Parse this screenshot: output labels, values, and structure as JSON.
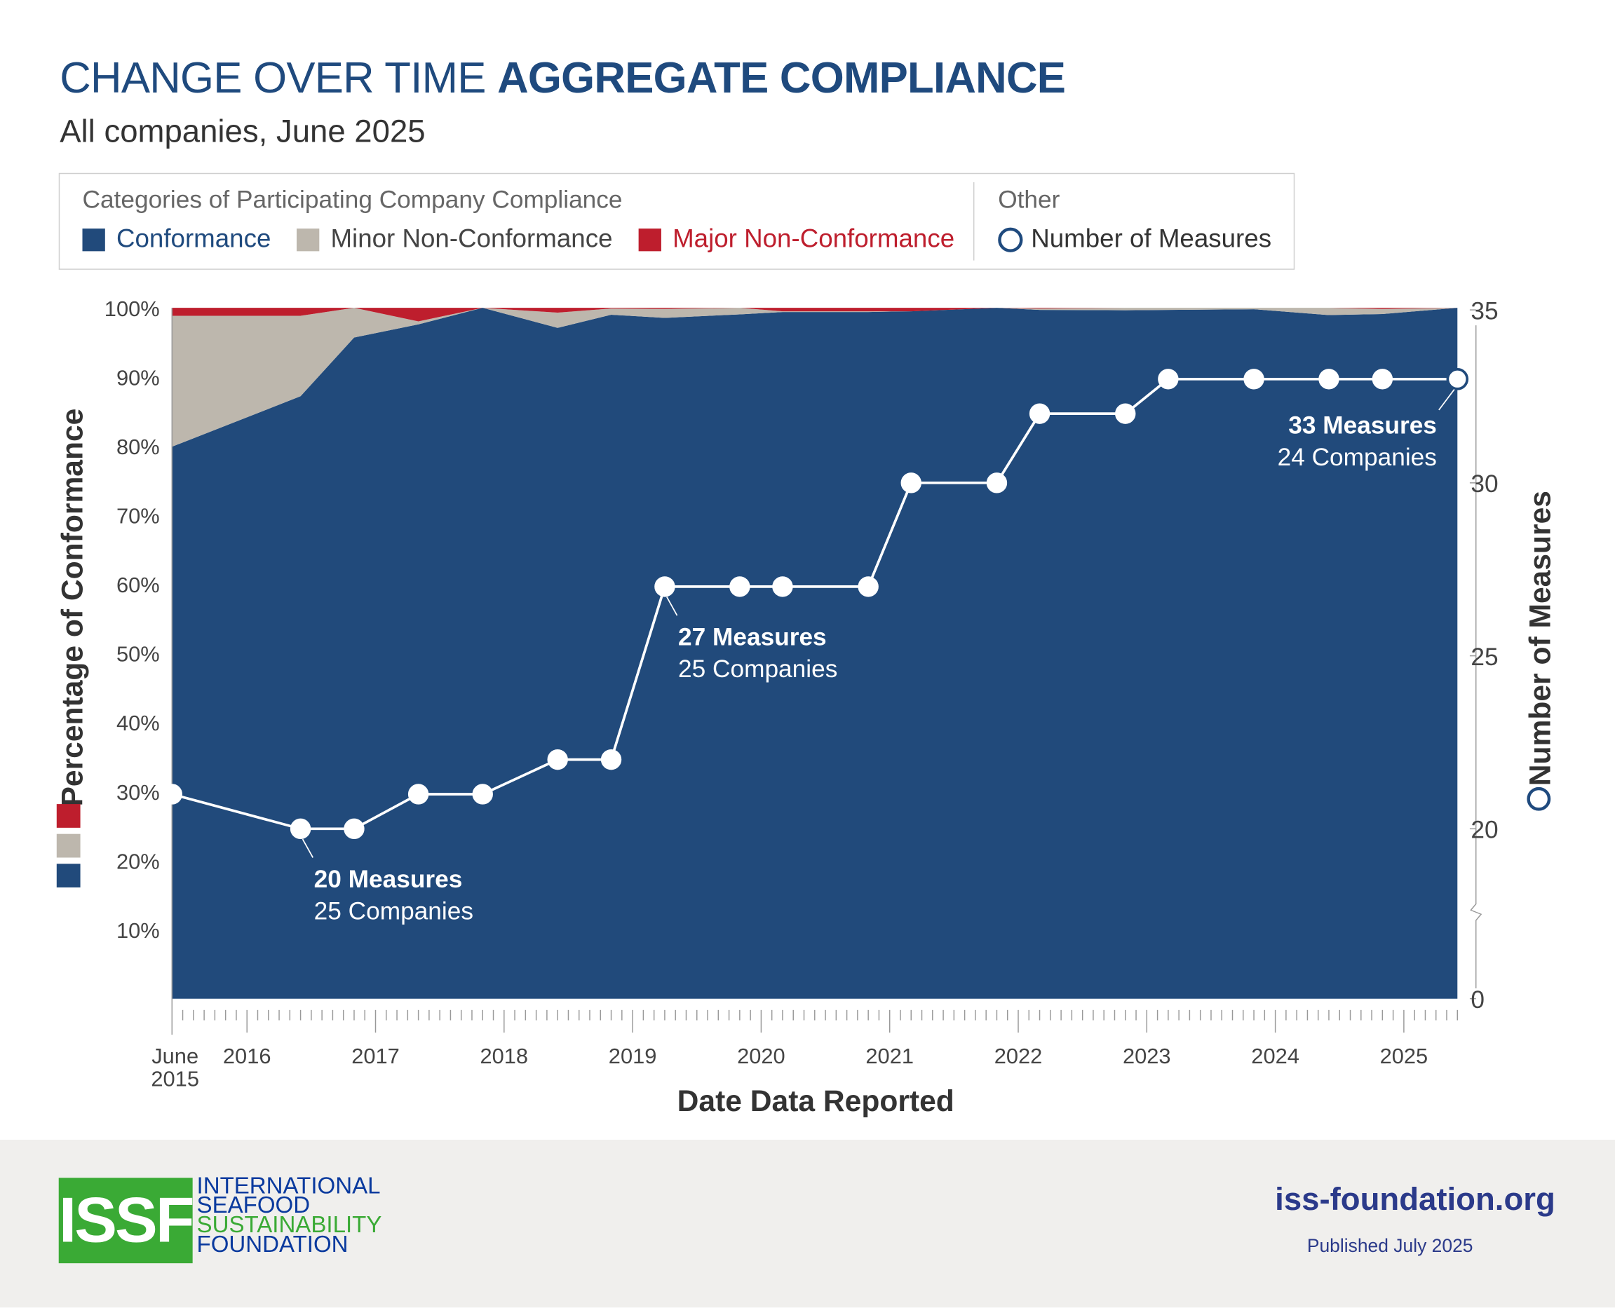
{
  "header": {
    "title_regular": "CHANGE OVER TIME",
    "title_bold": "AGGREGATE COMPLIANCE",
    "subtitle": "All companies, June 2025"
  },
  "legend": {
    "group1_title": "Categories of Participating Company Compliance",
    "group2_title": "Other",
    "items": [
      {
        "label": "Conformance",
        "color": "#214a7b"
      },
      {
        "label": "Minor Non-Conformance",
        "color": "#bdb7ad"
      },
      {
        "label": "Major Non-Conformance",
        "color": "#be1e2d"
      },
      {
        "label": "Number of Measures",
        "icon": "circle-outline-icon"
      }
    ]
  },
  "footer": {
    "logo_text": "ISSF",
    "logo_lines": [
      "INTERNATIONAL",
      "SEAFOOD",
      "SUSTAINABILITY",
      "FOUNDATION"
    ],
    "website": "iss-foundation.org",
    "published": "Published July 2025",
    "green": "#3aaa35",
    "blue": "#0a3a9e"
  },
  "chart_data": {
    "type": "area",
    "secondary_type": "line",
    "xlabel": "Date Data Reported",
    "ylabel": "Percentage of Conformance",
    "y2label": "Number of Measures",
    "ylim": [
      0,
      100
    ],
    "y2lim": [
      0,
      35
    ],
    "y2_axis_break": true,
    "grid": false,
    "legend_placement": "top",
    "x_tick_labels": [
      {
        "date": "2015-06",
        "label": "June 2015"
      },
      {
        "date": "2016-01",
        "label": "2016"
      },
      {
        "date": "2017-01",
        "label": "2017"
      },
      {
        "date": "2018-01",
        "label": "2018"
      },
      {
        "date": "2019-01",
        "label": "2019"
      },
      {
        "date": "2020-01",
        "label": "2020"
      },
      {
        "date": "2021-01",
        "label": "2021"
      },
      {
        "date": "2022-01",
        "label": "2022"
      },
      {
        "date": "2023-01",
        "label": "2023"
      },
      {
        "date": "2024-01",
        "label": "2024"
      },
      {
        "date": "2025-01",
        "label": "2025"
      }
    ],
    "y_tick_labels": [
      "10%",
      "20%",
      "30%",
      "40%",
      "50%",
      "60%",
      "70%",
      "80%",
      "90%",
      "100%"
    ],
    "y_ticks": [
      10,
      20,
      30,
      40,
      50,
      60,
      70,
      80,
      90,
      100
    ],
    "y2_ticks": [
      0,
      20,
      25,
      30,
      35
    ],
    "x": [
      "2015-06",
      "2016-06",
      "2016-11",
      "2017-05",
      "2017-11",
      "2018-06",
      "2018-11",
      "2019-04",
      "2019-11",
      "2020-03",
      "2020-11",
      "2021-03",
      "2021-11",
      "2022-03",
      "2022-11",
      "2023-03",
      "2023-11",
      "2024-06",
      "2024-11",
      "2025-06"
    ],
    "series": [
      {
        "name": "Conformance",
        "color": "#214a7b",
        "values": [
          79.9,
          87.2,
          95.7,
          97.6,
          100,
          97.1,
          99.0,
          98.55,
          99.05,
          99.4,
          99.4,
          99.5,
          100,
          99.7,
          99.65,
          99.7,
          99.8,
          98.95,
          99.1,
          100
        ]
      },
      {
        "name": "Minor Non-Conformance",
        "color": "#bdb7ad",
        "values": [
          18.95,
          11.65,
          4.3,
          0.44,
          0,
          2.2,
          0.9,
          1.3,
          0.95,
          0.1,
          0.1,
          0,
          0,
          0.2,
          0.35,
          0.3,
          0.2,
          1.05,
          0.75,
          0
        ]
      },
      {
        "name": "Major Non-Conformance",
        "color": "#be1e2d",
        "values": [
          1.15,
          1.15,
          0,
          1.96,
          0,
          0.7,
          0.1,
          0.15,
          0,
          0.5,
          0.5,
          0.5,
          0,
          0.1,
          0,
          0,
          0,
          0,
          0.15,
          0
        ]
      },
      {
        "name": "Number of Measures",
        "axis": "right",
        "values": [
          21,
          20,
          20,
          21,
          21,
          22,
          22,
          27,
          27,
          27,
          27,
          30,
          30,
          32,
          32,
          33,
          33,
          33,
          33,
          33
        ]
      }
    ],
    "annotations": [
      {
        "index": 1,
        "line1": "20 Measures",
        "line2": "25 Companies"
      },
      {
        "index": 7,
        "line1": "27 Measures",
        "line2": "25 Companies"
      },
      {
        "index": 19,
        "line1": "33 Measures",
        "line2": "24 Companies"
      }
    ]
  }
}
